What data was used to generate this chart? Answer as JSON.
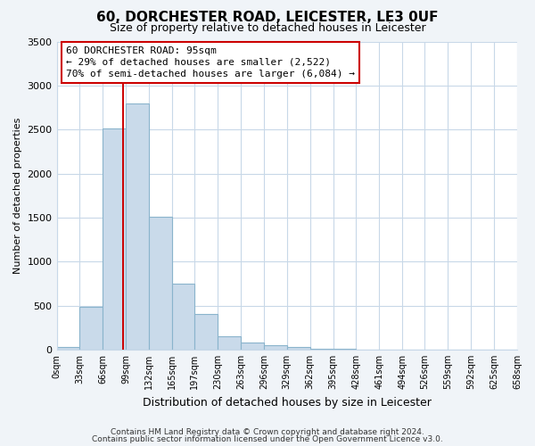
{
  "title": "60, DORCHESTER ROAD, LEICESTER, LE3 0UF",
  "subtitle": "Size of property relative to detached houses in Leicester",
  "xlabel": "Distribution of detached houses by size in Leicester",
  "ylabel": "Number of detached properties",
  "bar_edges": [
    0,
    33,
    66,
    99,
    132,
    165,
    197,
    230,
    263,
    296,
    329,
    362,
    395,
    428,
    461,
    494,
    526,
    559,
    592,
    625,
    658
  ],
  "bar_heights": [
    25,
    490,
    2510,
    2800,
    1510,
    750,
    400,
    150,
    80,
    55,
    25,
    10,
    5,
    0,
    0,
    0,
    0,
    0,
    0,
    0
  ],
  "bar_color": "#c9daea",
  "bar_edgecolor": "#8ab4cc",
  "property_line_x": 95,
  "property_line_color": "#cc0000",
  "ylim": [
    0,
    3500
  ],
  "yticks": [
    0,
    500,
    1000,
    1500,
    2000,
    2500,
    3000,
    3500
  ],
  "tick_labels": [
    "0sqm",
    "33sqm",
    "66sqm",
    "99sqm",
    "132sqm",
    "165sqm",
    "197sqm",
    "230sqm",
    "263sqm",
    "296sqm",
    "329sqm",
    "362sqm",
    "395sqm",
    "428sqm",
    "461sqm",
    "494sqm",
    "526sqm",
    "559sqm",
    "592sqm",
    "625sqm",
    "658sqm"
  ],
  "annotation_line1": "60 DORCHESTER ROAD: 95sqm",
  "annotation_line2": "← 29% of detached houses are smaller (2,522)",
  "annotation_line3": "70% of semi-detached houses are larger (6,084) →",
  "footnote1": "Contains HM Land Registry data © Crown copyright and database right 2024.",
  "footnote2": "Contains public sector information licensed under the Open Government Licence v3.0.",
  "bg_color": "#f0f4f8",
  "plot_bg_color": "#ffffff",
  "grid_color": "#c8d8e8",
  "title_fontsize": 11,
  "subtitle_fontsize": 9,
  "xlabel_fontsize": 9,
  "ylabel_fontsize": 8,
  "ytick_fontsize": 8,
  "xtick_fontsize": 7
}
